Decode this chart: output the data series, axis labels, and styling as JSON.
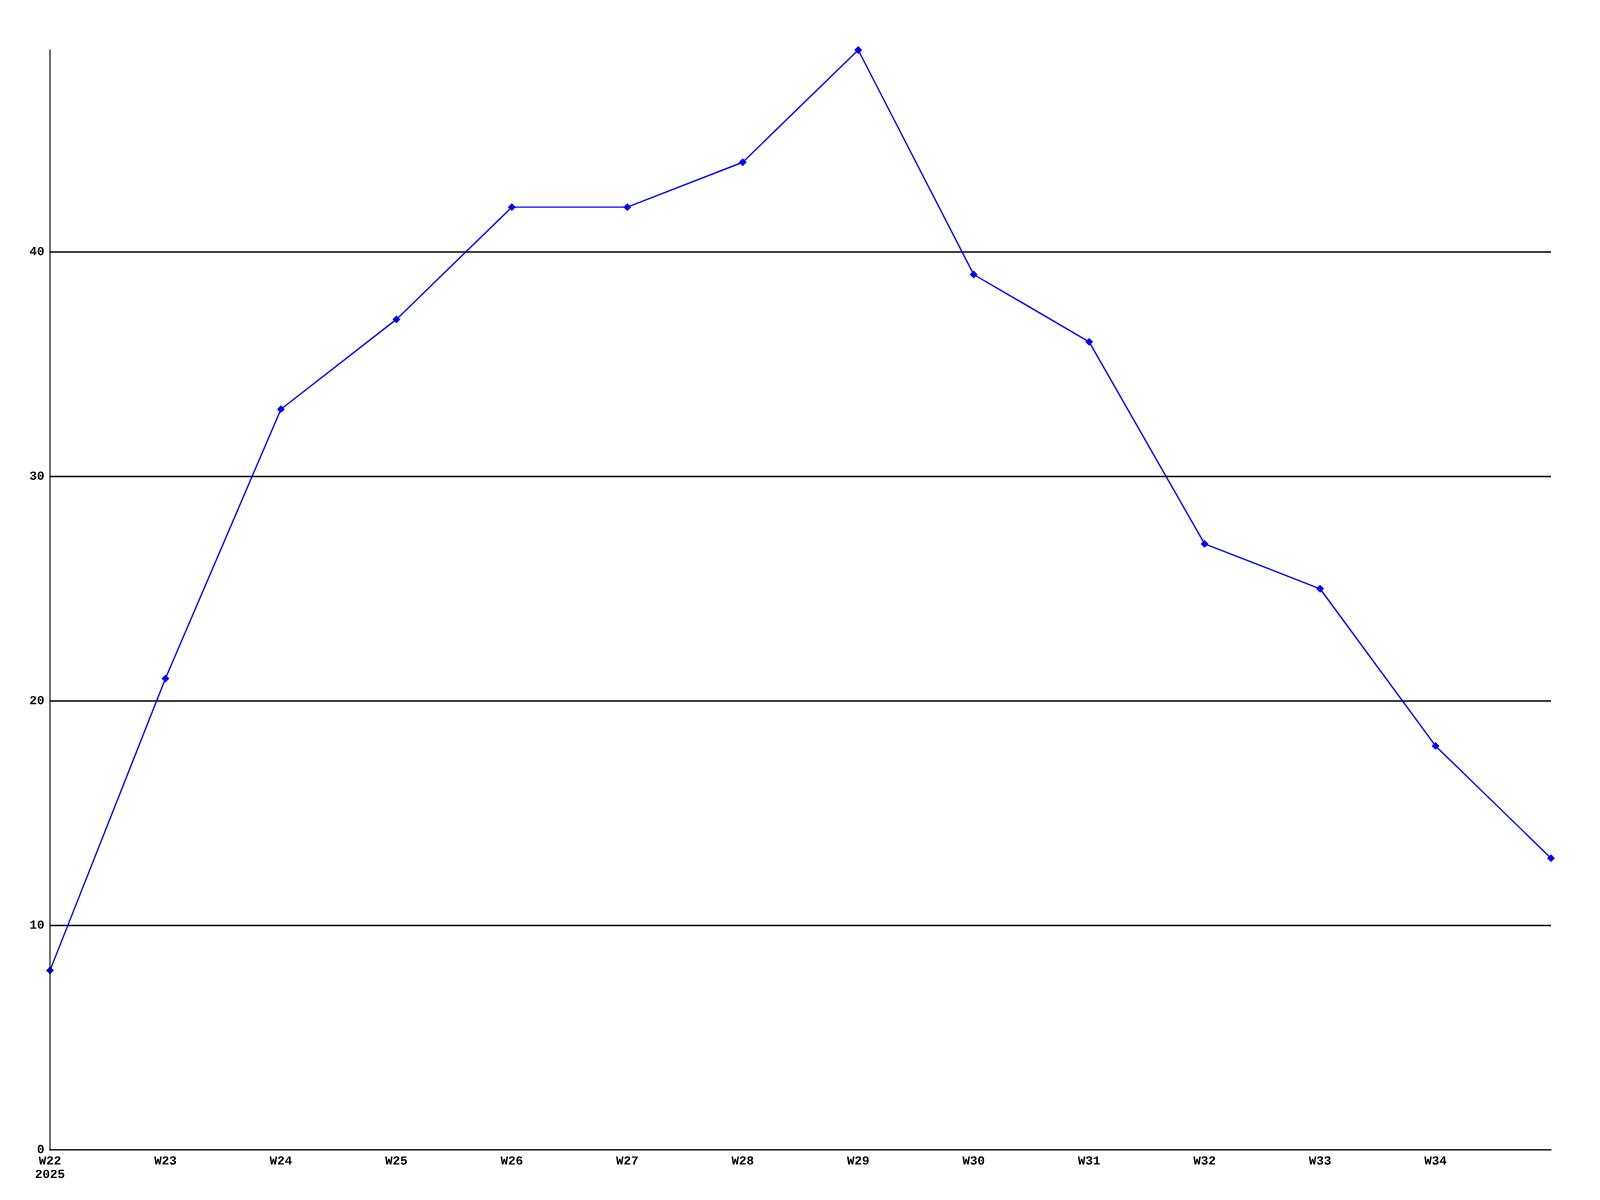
{
  "chart_data": {
    "type": "line",
    "categories": [
      "W22\n2025",
      "W23",
      "W24",
      "W25",
      "W26",
      "W27",
      "W28",
      "W29",
      "W30",
      "W31",
      "W32",
      "W33",
      "W34",
      null
    ],
    "series": [
      {
        "color": "#0000ff",
        "values": [
          8,
          21,
          33,
          37,
          42,
          42,
          44,
          49,
          39,
          36,
          27,
          25,
          18,
          13
        ]
      }
    ],
    "ylim": [
      0,
      49
    ],
    "yticks": [
      0,
      10,
      20,
      30,
      40
    ],
    "grid": "y",
    "marker": "diamond",
    "line_style": "solid",
    "legend": false
  }
}
